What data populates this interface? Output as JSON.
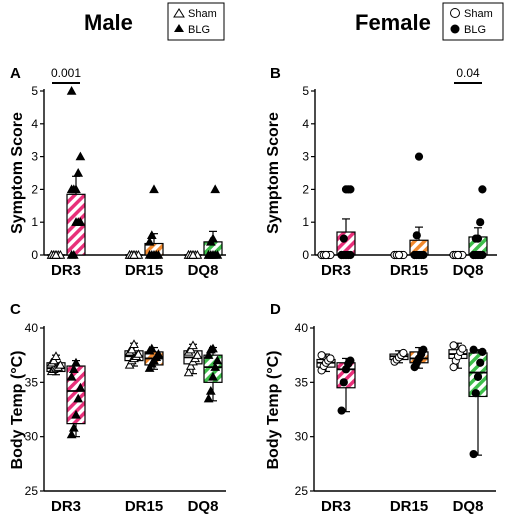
{
  "titles": {
    "male": "Male",
    "female": "Female"
  },
  "legends": {
    "male": [
      {
        "label": "Sham",
        "marker": "triangle-open"
      },
      {
        "label": "BLG",
        "marker": "triangle-filled"
      }
    ],
    "female": [
      {
        "label": "Sham",
        "marker": "circle-open"
      },
      {
        "label": "BLG",
        "marker": "circle-filled"
      }
    ]
  },
  "colors": {
    "DR3": "#e8307a",
    "DR15": "#f28a2e",
    "DQ8": "#3dbe4a"
  },
  "chart_data": [
    {
      "panel": "A",
      "type": "bar",
      "sex": "Male",
      "ylabel": "Symptom Score",
      "ylim": [
        0,
        5
      ],
      "yticks": [
        0,
        1,
        2,
        3,
        4,
        5
      ],
      "categories": [
        "DR3",
        "DR15",
        "DQ8"
      ],
      "series": [
        {
          "name": "Sham",
          "means": [
            0,
            0,
            0
          ],
          "sem": [
            0,
            0,
            0
          ],
          "points": [
            [
              0,
              0,
              0,
              0,
              0,
              0,
              0,
              0
            ],
            [
              0,
              0,
              0,
              0,
              0,
              0,
              0,
              0
            ],
            [
              0,
              0,
              0,
              0,
              0,
              0,
              0,
              0
            ]
          ]
        },
        {
          "name": "BLG",
          "means": [
            1.85,
            0.35,
            0.4
          ],
          "sem": [
            0.55,
            0.3,
            0.32
          ],
          "points": [
            [
              0,
              0,
              1,
              1,
              1,
              2,
              2,
              2,
              2.5,
              3,
              5
            ],
            [
              0,
              0,
              0,
              0,
              0,
              0.4,
              0.6,
              2
            ],
            [
              0,
              0,
              0,
              0,
              0,
              0,
              0.4,
              0.5,
              2
            ]
          ]
        }
      ],
      "annotations": [
        {
          "text": "0.001",
          "category": "DR3"
        }
      ]
    },
    {
      "panel": "B",
      "type": "bar",
      "sex": "Female",
      "ylabel": "Symptom Score",
      "ylim": [
        0,
        5
      ],
      "yticks": [
        0,
        1,
        2,
        3,
        4,
        5
      ],
      "categories": [
        "DR3",
        "DR15",
        "DQ8"
      ],
      "series": [
        {
          "name": "Sham",
          "means": [
            0,
            0,
            0
          ],
          "sem": [
            0,
            0,
            0
          ],
          "points": [
            [
              0,
              0,
              0,
              0,
              0,
              0,
              0,
              0
            ],
            [
              0,
              0,
              0,
              0,
              0,
              0,
              0,
              0
            ],
            [
              0,
              0,
              0,
              0,
              0,
              0,
              0,
              0
            ]
          ]
        },
        {
          "name": "BLG",
          "means": [
            0.7,
            0.45,
            0.55
          ],
          "sem": [
            0.4,
            0.4,
            0.28
          ],
          "points": [
            [
              0,
              0,
              0,
              0,
              0,
              0,
              0.5,
              2,
              2,
              2
            ],
            [
              0,
              0,
              0,
              0,
              0,
              0,
              0.6,
              3
            ],
            [
              0,
              0,
              0,
              0,
              0,
              0,
              0.5,
              0.5,
              1,
              2
            ]
          ]
        }
      ],
      "annotations": [
        {
          "text": "0.04",
          "category": "DQ8"
        }
      ]
    },
    {
      "panel": "C",
      "type": "box",
      "sex": "Male",
      "ylabel": "Body Temp (°C)",
      "ylim": [
        25,
        40
      ],
      "yticks": [
        25,
        30,
        35,
        40
      ],
      "categories": [
        "DR3",
        "DR15",
        "DQ8"
      ],
      "series": [
        {
          "name": "Sham",
          "boxes": [
            {
              "min": 35.7,
              "q1": 36.0,
              "median": 36.3,
              "q3": 36.8,
              "max": 37.5
            },
            {
              "min": 36.5,
              "q1": 37.0,
              "median": 37.4,
              "q3": 37.9,
              "max": 38.6
            },
            {
              "min": 35.8,
              "q1": 36.7,
              "median": 37.3,
              "q3": 37.9,
              "max": 38.5
            }
          ],
          "points": [
            [
              36.0,
              36.2,
              36.3,
              36.4,
              36.6,
              36.8,
              37.0,
              37.4
            ],
            [
              36.6,
              37.0,
              37.2,
              37.4,
              37.6,
              37.8,
              38.0,
              38.5
            ],
            [
              35.9,
              36.5,
              36.9,
              37.2,
              37.5,
              37.8,
              38.0,
              38.4
            ]
          ]
        },
        {
          "name": "BLG",
          "boxes": [
            {
              "min": 30.0,
              "q1": 31.2,
              "median": 34.2,
              "q3": 36.5,
              "max": 37.0
            },
            {
              "min": 36.2,
              "q1": 36.6,
              "median": 37.2,
              "q3": 37.8,
              "max": 38.2
            },
            {
              "min": 33.3,
              "q1": 35.0,
              "median": 36.4,
              "q3": 37.5,
              "max": 38.2
            }
          ],
          "points": [
            [
              30.2,
              30.8,
              32.0,
              33.5,
              34.5,
              35.5,
              36.2,
              36.8
            ],
            [
              36.3,
              36.7,
              37.0,
              37.3,
              37.6,
              37.9,
              38.1
            ],
            [
              33.5,
              34.2,
              35.5,
              36.4,
              37.0,
              37.5,
              38.0,
              38.1
            ]
          ]
        }
      ]
    },
    {
      "panel": "D",
      "type": "box",
      "sex": "Female",
      "ylabel": "Body Temp (°C)",
      "ylim": [
        25,
        40
      ],
      "yticks": [
        25,
        30,
        35,
        40
      ],
      "categories": [
        "DR3",
        "DR15",
        "DQ8"
      ],
      "series": [
        {
          "name": "Sham",
          "boxes": [
            {
              "min": 36.0,
              "q1": 36.4,
              "median": 36.8,
              "q3": 37.1,
              "max": 37.6
            },
            {
              "min": 36.8,
              "q1": 37.1,
              "median": 37.4,
              "q3": 37.6,
              "max": 37.9
            },
            {
              "min": 36.3,
              "q1": 37.2,
              "median": 37.6,
              "q3": 38.0,
              "max": 38.6
            }
          ],
          "points": [
            [
              36.1,
              36.5,
              36.8,
              37.0,
              37.2,
              37.5
            ],
            [
              36.9,
              37.1,
              37.3,
              37.5,
              37.7
            ],
            [
              36.4,
              37.0,
              37.4,
              37.8,
              38.1,
              38.4
            ]
          ]
        },
        {
          "name": "BLG",
          "boxes": [
            {
              "min": 32.3,
              "q1": 34.5,
              "median": 36.2,
              "q3": 36.8,
              "max": 37.2
            },
            {
              "min": 36.3,
              "q1": 36.8,
              "median": 37.2,
              "q3": 37.8,
              "max": 38.2
            },
            {
              "min": 28.3,
              "q1": 33.7,
              "median": 35.9,
              "q3": 37.7,
              "max": 38.0
            }
          ],
          "points": [
            [
              32.4,
              35.0,
              36.2,
              36.7,
              37.0
            ],
            [
              36.4,
              36.8,
              37.2,
              37.6,
              38.0
            ],
            [
              28.4,
              34.0,
              35.5,
              36.8,
              37.8,
              38.0
            ]
          ]
        }
      ]
    }
  ]
}
